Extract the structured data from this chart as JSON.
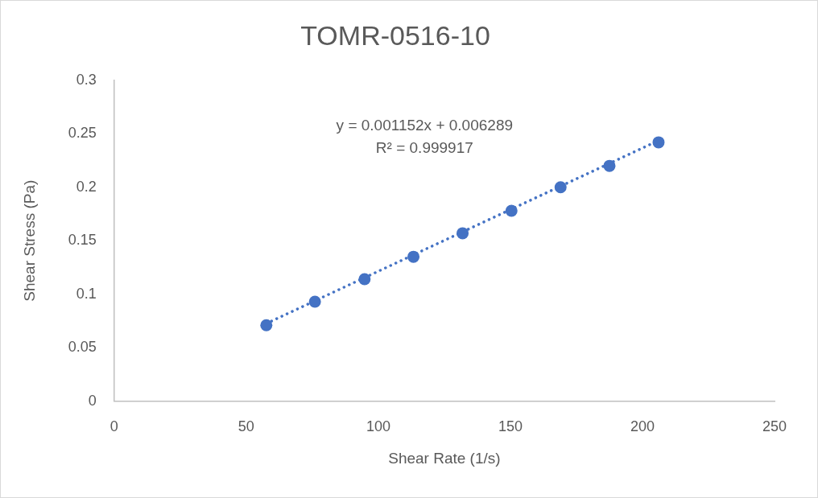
{
  "chart_data": {
    "type": "scatter",
    "title": "TOMR-0516-10",
    "xlabel": "Shear Rate (1/s)",
    "ylabel": "Shear Stress (Pa)",
    "annotations": [
      "y = 0.001152x + 0.006289",
      "R² = 0.999917"
    ],
    "xlim": [
      0,
      250
    ],
    "xticks": [
      0,
      50,
      100,
      150,
      200,
      250
    ],
    "ylim": [
      0,
      0.3
    ],
    "yticks": [
      0,
      0.05,
      0.1,
      0.15,
      0.2,
      0.25,
      0.3
    ],
    "marker": "circle",
    "series": [
      {
        "type": "scatter",
        "color": "#4472c4",
        "x": [
          57.6,
          76.0,
          94.8,
          113.3,
          131.9,
          150.4,
          169.0,
          187.5,
          206.1
        ],
        "values": [
          0.071,
          0.093,
          0.114,
          0.135,
          0.157,
          0.178,
          0.2,
          0.22,
          0.242
        ]
      },
      {
        "type": "line",
        "color": "#4472c4",
        "line_style": "dotted",
        "marker": "none",
        "x": [
          57.6,
          206.1
        ],
        "values": [
          0.0726,
          0.2437
        ]
      }
    ]
  }
}
